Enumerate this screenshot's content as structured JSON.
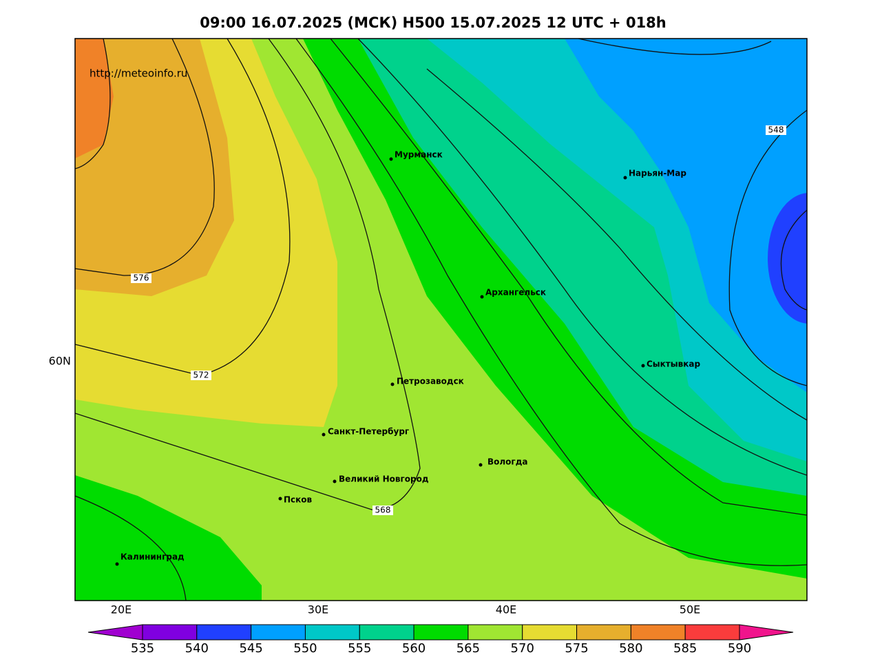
{
  "title": "09:00 16.07.2025 (МСК) H500  15.07.2025 12 UTC + 018h",
  "source": "http://meteoinfo.ru",
  "axis_labels": {
    "x": [
      "20E",
      "30E",
      "40E",
      "50E"
    ],
    "y": [
      "60N"
    ]
  },
  "contour_labels": [
    "576",
    "572",
    "568",
    "548"
  ],
  "cities": [
    "Мурманск",
    "Нарьян-Мар",
    "Архангельск",
    "Сыктывкар",
    "Петрозаводск",
    "Санкт-Петербург",
    "Вологда",
    "Великий Новгород",
    "Псков",
    "Калининград"
  ],
  "colorbar": {
    "ticks": [
      535,
      540,
      545,
      550,
      555,
      560,
      565,
      570,
      575,
      580,
      585,
      590
    ],
    "under_color": "#a000d0",
    "over_color": "#f0148c",
    "colors": [
      "#8000e0",
      "#2040ff",
      "#00a0ff",
      "#00c8c8",
      "#00d28c",
      "#00dc00",
      "#a0e632",
      "#e6dc32",
      "#e6af2d",
      "#f08228",
      "#fa3c3c"
    ]
  }
}
